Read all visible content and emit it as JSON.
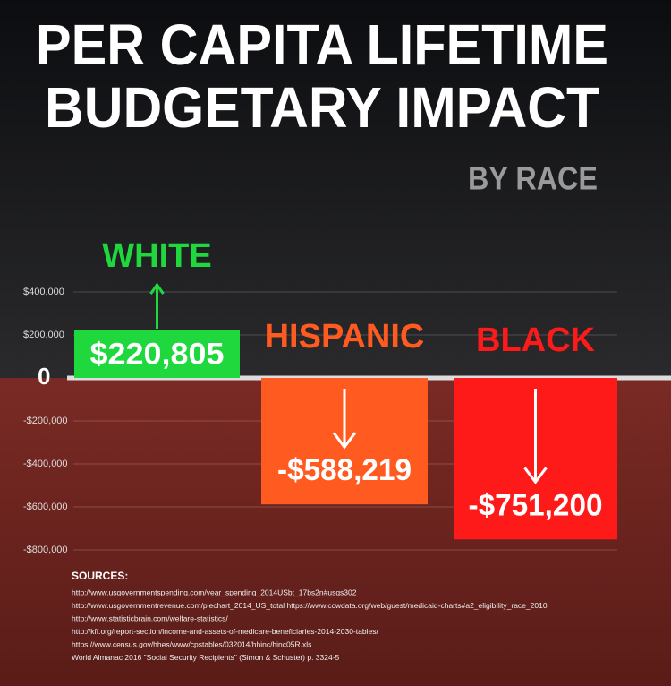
{
  "chart_data": {
    "type": "bar",
    "title": [
      "PER CAPITA  LIFETIME",
      "BUDGETARY IMPACT"
    ],
    "subtitle": "BY RACE",
    "categories": [
      "WHITE",
      "HISPANIC",
      "BLACK"
    ],
    "values": [
      220805,
      -588219,
      -751200
    ],
    "value_labels": [
      "$220,805",
      "-$588,219",
      "-$751,200"
    ],
    "colors": [
      "#1fd83e",
      "#ff5a20",
      "#ff1a1a"
    ],
    "ylim": [
      -800000,
      400000
    ],
    "yticks": [
      {
        "value": 400000,
        "label": "$400,000"
      },
      {
        "value": 200000,
        "label": "$200,000"
      },
      0,
      {
        "value": -200000,
        "label": "-$200,000"
      },
      {
        "value": -400000,
        "label": "-$400,000"
      },
      {
        "value": -600000,
        "label": "-$600,000"
      },
      {
        "value": -800000,
        "label": "-$800,000"
      }
    ],
    "grid": true,
    "sources": {
      "title": "SOURCES:",
      "items": [
        "http://www.usgovernmentspending.com/year_spending_2014USbt_17bs2n#usgs302",
        "http://www.usgovernmentrevenue.com/piechart_2014_US_total https://www.ccwdata.org/web/guest/medicaid-charts#a2_eligibility_race_2010",
        "http://www.statisticbrain.com/welfare-statistics/",
        "http://kff.org/report-section/income-and-assets-of-medicare-beneficiaries-2014-2030-tables/",
        "https://www.census.gov/hhes/www/cpstables/032014/hhinc/hinc05R.xls",
        "World Almanac 2016 \"Social Security Recipients\" (Simon & Schuster) p. 3324-5"
      ]
    }
  }
}
